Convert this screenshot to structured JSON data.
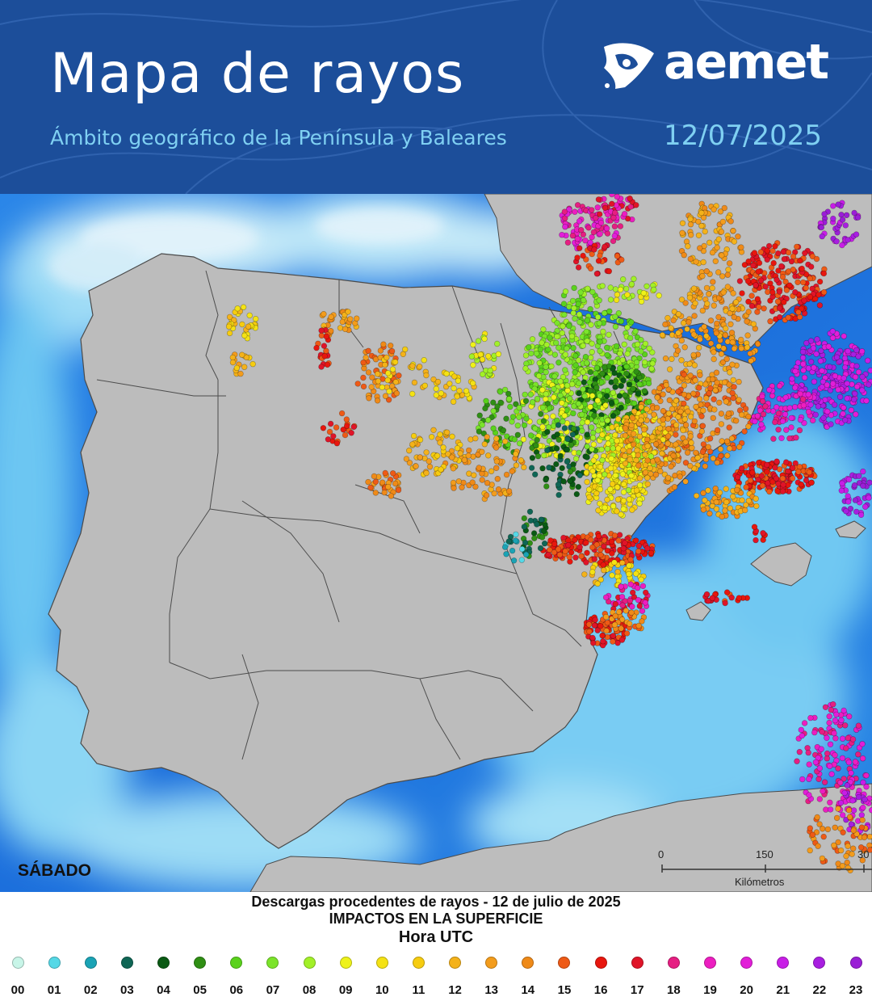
{
  "header": {
    "title": "Mapa de rayos",
    "subtitle": "Ámbito geográfico de la Península y Baleares",
    "date": "12/07/2025",
    "logo_text": "aemet"
  },
  "map": {
    "day_label": "SÁBADO",
    "scale": {
      "ticks": [
        "0",
        "150",
        "30"
      ],
      "unit": "Kilómetros"
    },
    "colors": {
      "sea_deep": "#1e73e0",
      "sea_light": "#7fd3f5",
      "cloud": "#d6eaf6",
      "land": "#b9b9b9",
      "border": "#4a4a4a"
    }
  },
  "legend": {
    "line1": "Descargas procedentes de rayos - 12 de julio de 2025",
    "line2": "IMPACTOS EN LA SUPERFICIE",
    "line3": "Hora UTC",
    "hours": [
      {
        "hour": "00",
        "color": "#c8f5e8"
      },
      {
        "hour": "01",
        "color": "#55d8e6"
      },
      {
        "hour": "02",
        "color": "#1aa3b5"
      },
      {
        "hour": "03",
        "color": "#0f6655"
      },
      {
        "hour": "04",
        "color": "#0a5a14"
      },
      {
        "hour": "05",
        "color": "#2f8f14"
      },
      {
        "hour": "06",
        "color": "#5ad21c"
      },
      {
        "hour": "07",
        "color": "#7be42a"
      },
      {
        "hour": "08",
        "color": "#a2f028"
      },
      {
        "hour": "09",
        "color": "#eef21a"
      },
      {
        "hour": "10",
        "color": "#f4e214"
      },
      {
        "hour": "11",
        "color": "#f6cc10"
      },
      {
        "hour": "12",
        "color": "#f4b21a"
      },
      {
        "hour": "13",
        "color": "#f39c1c"
      },
      {
        "hour": "14",
        "color": "#ef8a18"
      },
      {
        "hour": "15",
        "color": "#ee5a16"
      },
      {
        "hour": "16",
        "color": "#e8160e"
      },
      {
        "hour": "17",
        "color": "#e01428"
      },
      {
        "hour": "18",
        "color": "#e61e82"
      },
      {
        "hour": "19",
        "color": "#ec1ec0"
      },
      {
        "hour": "20",
        "color": "#e21ed8"
      },
      {
        "hour": "21",
        "color": "#c81ee6"
      },
      {
        "hour": "22",
        "color": "#a81ee0"
      },
      {
        "hour": "23",
        "color": "#9a1ed6"
      }
    ]
  }
}
